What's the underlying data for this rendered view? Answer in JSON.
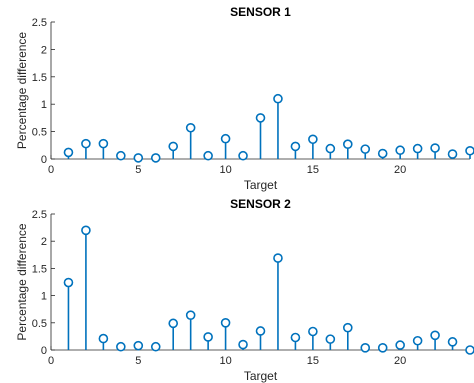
{
  "chart_data": [
    {
      "type": "stem",
      "title": "SENSOR 1",
      "xlabel": "Target",
      "ylabel": "Percentage difference",
      "xlim": [
        0,
        24
      ],
      "ylim": [
        0,
        2.5
      ],
      "xticks": [
        "0",
        "5",
        "10",
        "15",
        "20"
      ],
      "yticks": [
        "0",
        "0.5",
        "1",
        "1.5",
        "2",
        "2.5"
      ],
      "x": [
        1,
        2,
        3,
        4,
        5,
        6,
        7,
        8,
        9,
        10,
        11,
        12,
        13,
        14,
        15,
        16,
        17,
        18,
        19,
        20,
        21,
        22,
        23,
        24
      ],
      "values": [
        0.12,
        0.28,
        0.28,
        0.06,
        0.02,
        0.02,
        0.23,
        0.57,
        0.06,
        0.37,
        0.06,
        0.75,
        1.1,
        0.23,
        0.36,
        0.19,
        0.27,
        0.18,
        0.1,
        0.16,
        0.19,
        0.2,
        0.09,
        0.15
      ],
      "grid": false,
      "color": "#0072BD"
    },
    {
      "type": "stem",
      "title": "SENSOR 2",
      "xlabel": "Target",
      "ylabel": "Percentage difference",
      "xlim": [
        0,
        24
      ],
      "ylim": [
        0,
        2.5
      ],
      "xticks": [
        "0",
        "5",
        "10",
        "15",
        "20"
      ],
      "yticks": [
        "0",
        "0.5",
        "1",
        "1.5",
        "2",
        "2.5"
      ],
      "x": [
        1,
        2,
        3,
        4,
        5,
        6,
        7,
        8,
        9,
        10,
        11,
        12,
        13,
        14,
        15,
        16,
        17,
        18,
        19,
        20,
        21,
        22,
        23,
        24
      ],
      "values": [
        1.24,
        2.2,
        0.21,
        0.06,
        0.08,
        0.06,
        0.49,
        0.64,
        0.24,
        0.5,
        0.1,
        0.35,
        1.69,
        0.23,
        0.34,
        0.2,
        0.41,
        0.04,
        0.04,
        0.09,
        0.17,
        0.27,
        0.15,
        0.0
      ],
      "grid": false,
      "color": "#0072BD"
    }
  ]
}
